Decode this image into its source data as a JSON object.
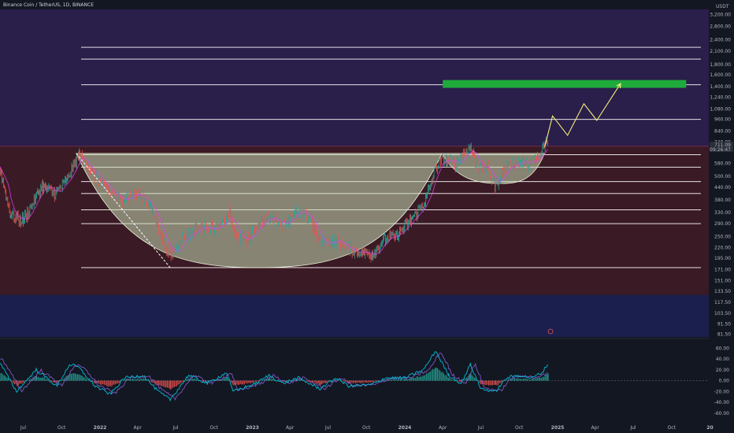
{
  "header": {
    "symbol_title": "Binance Coin / TetherUS, 1D, BINANCE",
    "currency": "USDT"
  },
  "colors": {
    "background": "#131722",
    "zone_purple": "#2a1e4a",
    "zone_red": "#3a1a24",
    "zone_blue": "#1a1f4e",
    "cup_fill": "#c8dcb4",
    "target_box": "#1faa3c",
    "projection": "#f5f07a",
    "hline": "#ffffff",
    "candle_up": "#26a69a",
    "candle_down": "#ef5350",
    "ma_line": "#e040fb",
    "osc_blue": "#00bcd4",
    "osc_purple": "#7e57c2",
    "last_price_bg": "#2a2e39"
  },
  "chart_data": {
    "type": "line",
    "symbol": "BNBUSDT",
    "timeframe": "1D",
    "exchange": "BINANCE",
    "price_scale": "log",
    "last_price": "711.09",
    "countdown": "09:26:47",
    "y_ticks": [
      "3,200.00",
      "2,800.00",
      "2,400.00",
      "2,100.00",
      "1,800.00",
      "1,600.00",
      "1,400.00",
      "1,240.00",
      "1,080.00",
      "960.00",
      "840.00",
      "740.00",
      "580.00",
      "500.00",
      "440.00",
      "380.00",
      "330.00",
      "290.00",
      "250.00",
      "220.00",
      "195.00",
      "171.00",
      "151.00",
      "133.50",
      "117.50",
      "103.50",
      "91.50",
      "81.50"
    ],
    "x_labels": [
      "Jul",
      "Oct",
      "2022",
      "Apr",
      "Jul",
      "Oct",
      "2023",
      "Apr",
      "Jul",
      "Oct",
      "2024",
      "Apr",
      "Jul",
      "Oct",
      "2025",
      "Apr",
      "Jul",
      "Oct",
      "20"
    ],
    "horizontal_levels": [
      2200,
      1920,
      1430,
      960,
      640,
      555,
      470,
      410,
      340,
      290,
      175
    ],
    "target_zone": {
      "x_start": "2024-04-01",
      "x_end": "2025-11-05",
      "y_low": 1380,
      "y_high": 1510
    },
    "zones": [
      {
        "name": "upper",
        "y_low": 705,
        "y_high": 3400
      },
      {
        "name": "middle",
        "y_low": 128,
        "y_high": 705
      },
      {
        "name": "lower",
        "y_low": 78,
        "y_high": 128
      }
    ],
    "cup_large": {
      "left": [
        "2021-11-05",
        650
      ],
      "bottom": [
        "2023-01-15",
        175
      ],
      "right": [
        "2024-03-30",
        650
      ]
    },
    "cup_small": {
      "left": [
        "2024-03-30",
        650
      ],
      "bottom": [
        "2024-08-20",
        460
      ],
      "right": [
        "2024-12-01",
        650
      ]
    },
    "dashed_trend": [
      [
        "2021-11-05",
        650
      ],
      [
        "2022-06-18",
        175
      ]
    ],
    "projection_path": [
      [
        "2024-12-01",
        700
      ],
      [
        "2024-12-20",
        1000
      ],
      [
        "2025-01-25",
        800
      ],
      [
        "2025-03-05",
        1150
      ],
      [
        "2025-04-05",
        950
      ],
      [
        "2025-06-01",
        1450
      ]
    ],
    "price_path": [
      [
        "2021-05-01",
        600
      ],
      [
        "2021-06-01",
        320
      ],
      [
        "2021-07-01",
        300
      ],
      [
        "2021-08-15",
        450
      ],
      [
        "2021-09-15",
        410
      ],
      [
        "2021-10-15",
        480
      ],
      [
        "2021-11-10",
        640
      ],
      [
        "2021-12-15",
        520
      ],
      [
        "2022-01-20",
        420
      ],
      [
        "2022-02-20",
        380
      ],
      [
        "2022-03-20",
        410
      ],
      [
        "2022-04-25",
        380
      ],
      [
        "2022-05-15",
        300
      ],
      [
        "2022-06-18",
        200
      ],
      [
        "2022-07-20",
        250
      ],
      [
        "2022-09-01",
        280
      ],
      [
        "2022-10-15",
        275
      ],
      [
        "2022-11-08",
        330
      ],
      [
        "2022-11-20",
        250
      ],
      [
        "2022-12-20",
        240
      ],
      [
        "2023-01-20",
        300
      ],
      [
        "2023-02-20",
        310
      ],
      [
        "2023-03-15",
        290
      ],
      [
        "2023-04-15",
        330
      ],
      [
        "2023-05-20",
        310
      ],
      [
        "2023-06-12",
        230
      ],
      [
        "2023-07-20",
        240
      ],
      [
        "2023-08-20",
        215
      ],
      [
        "2023-09-20",
        210
      ],
      [
        "2023-10-15",
        205
      ],
      [
        "2023-11-10",
        240
      ],
      [
        "2023-12-10",
        250
      ],
      [
        "2024-01-15",
        300
      ],
      [
        "2024-02-20",
        380
      ],
      [
        "2024-03-15",
        560
      ],
      [
        "2024-04-01",
        600
      ],
      [
        "2024-05-01",
        580
      ],
      [
        "2024-06-06",
        700
      ],
      [
        "2024-06-25",
        560
      ],
      [
        "2024-07-15",
        550
      ],
      [
        "2024-08-05",
        450
      ],
      [
        "2024-08-25",
        540
      ],
      [
        "2024-09-25",
        590
      ],
      [
        "2024-10-25",
        580
      ],
      [
        "2024-11-20",
        620
      ],
      [
        "2024-12-04",
        760
      ],
      [
        "2024-12-08",
        711
      ]
    ],
    "oscillator": {
      "y_ticks": [
        "60.00",
        "40.00",
        "20.00",
        "0.00",
        "-20.00",
        "-40.00",
        "-60.00"
      ],
      "ylim": [
        -72,
        72
      ],
      "values": [
        [
          "2021-05-01",
          40
        ],
        [
          "2021-06-15",
          -20
        ],
        [
          "2021-08-01",
          20
        ],
        [
          "2021-09-20",
          -10
        ],
        [
          "2021-10-20",
          30
        ],
        [
          "2021-11-10",
          25
        ],
        [
          "2021-12-20",
          -10
        ],
        [
          "2022-01-25",
          -25
        ],
        [
          "2022-03-01",
          5
        ],
        [
          "2022-04-15",
          10
        ],
        [
          "2022-05-20",
          -20
        ],
        [
          "2022-06-18",
          -35
        ],
        [
          "2022-08-01",
          10
        ],
        [
          "2022-09-15",
          -5
        ],
        [
          "2022-11-01",
          15
        ],
        [
          "2022-11-15",
          -20
        ],
        [
          "2023-01-10",
          -5
        ],
        [
          "2023-02-10",
          10
        ],
        [
          "2023-03-15",
          -5
        ],
        [
          "2023-04-20",
          5
        ],
        [
          "2023-06-12",
          -15
        ],
        [
          "2023-07-20",
          5
        ],
        [
          "2023-08-20",
          -10
        ],
        [
          "2023-10-10",
          -8
        ],
        [
          "2023-11-15",
          5
        ],
        [
          "2024-01-01",
          5
        ],
        [
          "2024-02-15",
          20
        ],
        [
          "2024-03-15",
          55
        ],
        [
          "2024-04-15",
          10
        ],
        [
          "2024-05-15",
          -5
        ],
        [
          "2024-06-06",
          30
        ],
        [
          "2024-07-01",
          -15
        ],
        [
          "2024-08-05",
          -20
        ],
        [
          "2024-09-01",
          5
        ],
        [
          "2024-10-01",
          10
        ],
        [
          "2024-11-01",
          5
        ],
        [
          "2024-11-25",
          15
        ],
        [
          "2024-12-08",
          30
        ]
      ]
    }
  }
}
